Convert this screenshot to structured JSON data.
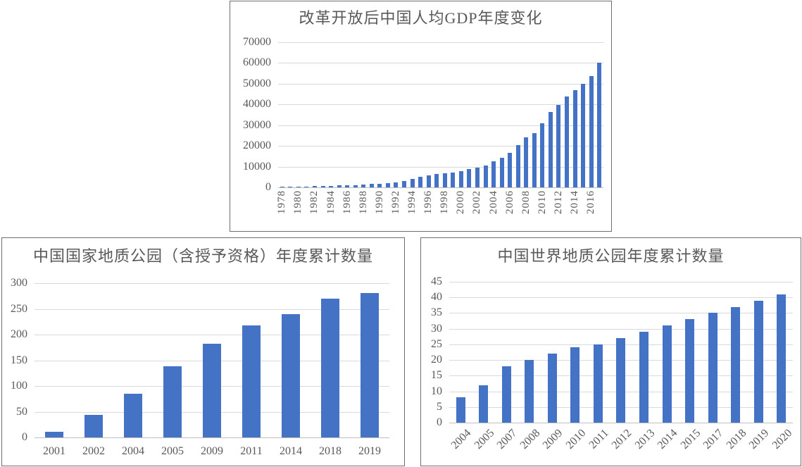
{
  "colors": {
    "bar": "#4472C4",
    "gridline": "#D9D9D9",
    "axis_line": "#BFBFBF",
    "text": "#595959",
    "chart_border": "#6E6E6E",
    "background": "#FFFFFF"
  },
  "chart_data": [
    {
      "id": "gdp-per-capita",
      "type": "bar",
      "title": "改革开放后中国人均GDP年度变化",
      "xlabel": "",
      "ylabel": "",
      "categories": [
        "1978",
        "1979",
        "1980",
        "1981",
        "1982",
        "1983",
        "1984",
        "1985",
        "1986",
        "1987",
        "1988",
        "1989",
        "1990",
        "1991",
        "1992",
        "1993",
        "1994",
        "1995",
        "1996",
        "1997",
        "1998",
        "1999",
        "2000",
        "2001",
        "2002",
        "2003",
        "2004",
        "2005",
        "2006",
        "2007",
        "2008",
        "2009",
        "2010",
        "2011",
        "2012",
        "2013",
        "2014",
        "2015",
        "2016",
        "2017"
      ],
      "values": [
        385,
        423,
        468,
        497,
        533,
        588,
        702,
        866,
        973,
        1123,
        1378,
        1536,
        1663,
        1912,
        2334,
        3027,
        4081,
        5091,
        5898,
        6481,
        6860,
        7229,
        7942,
        8717,
        9506,
        10666,
        12487,
        14368,
        16738,
        20494,
        24100,
        26180,
        30808,
        36302,
        39874,
        43684,
        47005,
        50028,
        53680,
        60014
      ],
      "xtick_labels": [
        "1978",
        "1980",
        "1982",
        "1984",
        "1986",
        "1988",
        "1990",
        "1992",
        "1994",
        "1996",
        "1998",
        "2000",
        "2002",
        "2004",
        "2006",
        "2008",
        "2010",
        "2012",
        "2014",
        "2016"
      ],
      "yticks": [
        0,
        10000,
        20000,
        30000,
        40000,
        50000,
        60000,
        70000
      ],
      "ylim": [
        0,
        70000
      ],
      "grid": true,
      "legend": "none",
      "xtick_rotation": -90
    },
    {
      "id": "national-geoparks",
      "type": "bar",
      "title": "中国国家地质公园（含授予资格）年度累计数量",
      "xlabel": "",
      "ylabel": "",
      "categories": [
        "2001",
        "2002",
        "2004",
        "2005",
        "2009",
        "2011",
        "2014",
        "2018",
        "2019"
      ],
      "values": [
        11,
        44,
        85,
        138,
        182,
        218,
        240,
        270,
        281
      ],
      "yticks": [
        0,
        50,
        100,
        150,
        200,
        250,
        300
      ],
      "ylim": [
        0,
        300
      ],
      "grid": true,
      "legend": "none",
      "xtick_rotation": 0
    },
    {
      "id": "world-geoparks",
      "type": "bar",
      "title": "中国世界地质公园年度累计数量",
      "xlabel": "",
      "ylabel": "",
      "categories": [
        "2004",
        "2005",
        "2007",
        "2008",
        "2009",
        "2010",
        "2011",
        "2012",
        "2013",
        "2014",
        "2015",
        "2017",
        "2018",
        "2019",
        "2020"
      ],
      "values": [
        8,
        12,
        18,
        20,
        22,
        24,
        25,
        27,
        29,
        31,
        33,
        35,
        37,
        39,
        41
      ],
      "yticks": [
        0,
        5,
        10,
        15,
        20,
        25,
        30,
        35,
        40,
        45
      ],
      "ylim": [
        0,
        45
      ],
      "grid": true,
      "legend": "none",
      "xtick_rotation": -45
    }
  ]
}
